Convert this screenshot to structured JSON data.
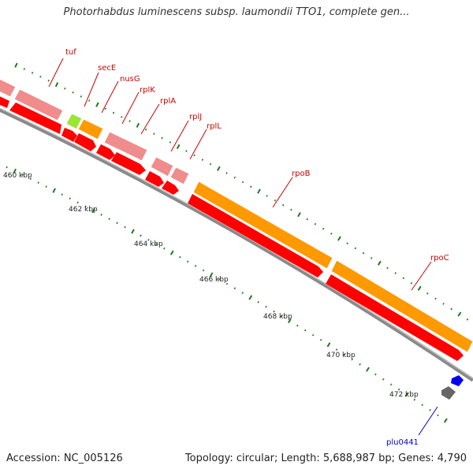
{
  "header": {
    "title": "Photorhabdus luminescens subsp. laumondii TTO1, complete gen..."
  },
  "footer": {
    "accession": "Accession: NC_005126",
    "summary": "Topology: circular; Length: 5,688,987 bp; Genes: 4,790"
  },
  "colors": {
    "backbone": "#8a8a8a",
    "tick": "#1f7a1f",
    "gene_red": "#ff0000",
    "gene_pink": "#f08c8c",
    "gene_orange": "#ff9900",
    "gene_lime": "#99e633",
    "gene_blue": "#0000ee",
    "gene_gray": "#666666",
    "label_red": "#cc0000",
    "label_blue": "#0000cc"
  },
  "map": {
    "gene_labels": [
      {
        "id": "tuf",
        "text": "tuf",
        "color": "red"
      },
      {
        "id": "secE",
        "text": "secE",
        "color": "red"
      },
      {
        "id": "nusG",
        "text": "nusG",
        "color": "red"
      },
      {
        "id": "rplK",
        "text": "rplK",
        "color": "red"
      },
      {
        "id": "rplA",
        "text": "rplA",
        "color": "red"
      },
      {
        "id": "rplJ",
        "text": "rplJ",
        "color": "red"
      },
      {
        "id": "rplL",
        "text": "rplL",
        "color": "red"
      },
      {
        "id": "rpoB",
        "text": "rpoB",
        "color": "red"
      },
      {
        "id": "rpoC",
        "text": "rpoC",
        "color": "red"
      },
      {
        "id": "plu0441",
        "text": "plu0441",
        "color": "blue"
      }
    ],
    "kbp_labels": [
      "460 kbp",
      "462 kbp",
      "464 kbp",
      "466 kbp",
      "468 kbp",
      "470 kbp",
      "472 kbp"
    ]
  }
}
